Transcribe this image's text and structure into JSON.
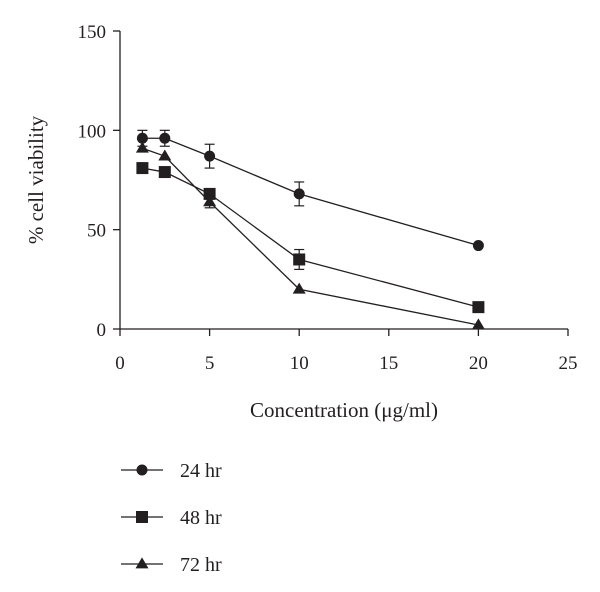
{
  "chart_data": {
    "type": "line",
    "title": "",
    "xlabel": "Concentration (μg/ml)",
    "ylabel": "% cell viability",
    "xlim": [
      0,
      25
    ],
    "ylim": [
      0,
      150
    ],
    "xticks": [
      0,
      5,
      10,
      15,
      20,
      25
    ],
    "yticks": [
      0,
      50,
      100,
      150
    ],
    "xtick_labels": [
      "0",
      "5",
      "10",
      "15",
      "20",
      "25"
    ],
    "ytick_labels": [
      "0",
      "50",
      "100",
      "150"
    ],
    "grid": false,
    "legend_position": "bottom-left",
    "series": [
      {
        "name": "24 hr",
        "marker": "circle",
        "color": "#231f20",
        "x": [
          1.25,
          2.5,
          5,
          10,
          20
        ],
        "y": [
          96,
          96,
          87,
          68,
          42
        ],
        "error": [
          4,
          4,
          6,
          6,
          0
        ]
      },
      {
        "name": "48 hr",
        "marker": "square",
        "color": "#231f20",
        "x": [
          1.25,
          2.5,
          5,
          10,
          20
        ],
        "y": [
          81,
          79,
          68,
          35,
          11
        ],
        "error": [
          0,
          0,
          0,
          5,
          0
        ]
      },
      {
        "name": "72 hr",
        "marker": "triangle",
        "color": "#231f20",
        "x": [
          1.25,
          2.5,
          5,
          10,
          20
        ],
        "y": [
          91,
          87,
          64,
          20,
          2
        ],
        "error": [
          0,
          0,
          3,
          0,
          0
        ]
      }
    ]
  }
}
